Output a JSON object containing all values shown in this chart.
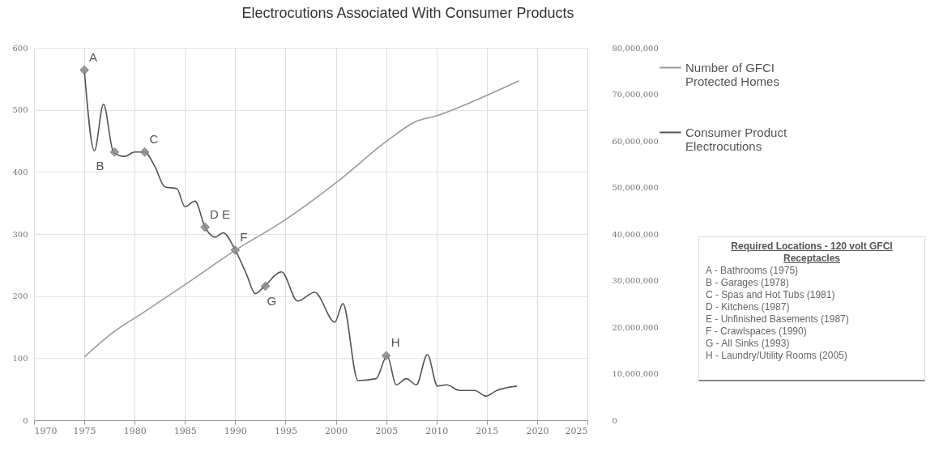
{
  "chart_data": {
    "type": "line",
    "title": "Electrocutions Associated With Consumer Products",
    "xlim": [
      1970,
      2025
    ],
    "xticks": [
      1970,
      1975,
      1980,
      1985,
      1990,
      1995,
      2000,
      2005,
      2010,
      2015,
      2020,
      2025
    ],
    "ylim": [
      0,
      600
    ],
    "yticks": [
      0,
      100,
      200,
      300,
      400,
      500,
      600
    ],
    "y2lim": [
      0,
      80000000
    ],
    "y2ticks": [
      0,
      {
        "value": 10000000,
        "label": "10,000,000"
      },
      {
        "value": 20000000,
        "label": "20,000,000"
      },
      {
        "value": 30000000,
        "label": "30,000,000"
      },
      {
        "value": 40000000,
        "label": "40,000,000"
      },
      {
        "value": 50000000,
        "label": "50,000,000"
      },
      {
        "value": 60000000,
        "label": "60,000,000"
      },
      {
        "value": 70000000,
        "label": "70,000,000"
      },
      {
        "value": 80000000,
        "label": "80,000,000"
      }
    ],
    "grid": true,
    "legend": "right",
    "series": [
      {
        "name": "Number of GFCI Protected Homes",
        "color": "#9a9a9a",
        "axis": "y2",
        "x": [
          1975,
          1978,
          1980.7,
          1985,
          1990,
          1994.8,
          2000.3,
          2005.2,
          2008,
          2010,
          2014.3,
          2018.2
        ],
        "values": [
          13600000,
          19100000,
          22900000,
          29100000,
          36500000,
          42800000,
          51500000,
          60200000,
          64200000,
          65400000,
          69100000,
          72900000
        ]
      },
      {
        "name": "Consumer Product Electrocutions",
        "color": "#555555",
        "x": [
          1975,
          1976,
          1976.9,
          1977.9,
          1979,
          1980,
          1981,
          1982,
          1983,
          1984.2,
          1985,
          1986,
          1987,
          1988,
          1988.8,
          1990,
          1991.1,
          1992,
          1992.9,
          1994.6,
          1996.2,
          1997.9,
          1999.9,
          2000.7,
          2002.2,
          2004,
          2005.1,
          2006,
          2007,
          2008,
          2009.1,
          2010.1,
          2011,
          2012.3,
          2013.8,
          2014.9,
          2016,
          2018
        ],
        "values": [
          564,
          434,
          509,
          432,
          425,
          432,
          432,
          409,
          376,
          373,
          344,
          353,
          311,
          295,
          302,
          274,
          236,
          204,
          216,
          239,
          192,
          206,
          158,
          188,
          64,
          67,
          104,
          57,
          67,
          57,
          106,
          55,
          57,
          48,
          48,
          39,
          48,
          55
        ]
      },
      {
        "type": "scatter",
        "color": "#8a8a8a",
        "marker": "diamond",
        "x": [
          1975,
          1978,
          1981,
          1987,
          1990,
          1993,
          2005
        ],
        "values": [
          564,
          432,
          432,
          311,
          274,
          216,
          104
        ]
      }
    ],
    "annotations": [
      "Required Locations - 120 volt GFCI Receptacles",
      "A - Bathrooms (1975)",
      "B - Garages (1978)",
      "C - Spas and Hot Tubs (1981)",
      "D - Kitchens (1987)",
      "E - Unfinished Basements (1987)",
      "F - Crawlspaces (1990)",
      "G - All Sinks (1993)",
      "H - Laundry/Utility Rooms (2005)",
      {
        "text": "A",
        "x": 1975,
        "y": 564
      },
      {
        "text": "B",
        "x": 1976,
        "y": 434
      },
      {
        "text": "C",
        "x": 1981,
        "y": 432
      },
      {
        "text": "D E",
        "x": 1987,
        "y": 311
      },
      {
        "text": "F",
        "x": 1990,
        "y": 274
      },
      {
        "text": "G",
        "x": 1993,
        "y": 216
      },
      {
        "text": "H",
        "x": 2005,
        "y": 104
      }
    ]
  }
}
